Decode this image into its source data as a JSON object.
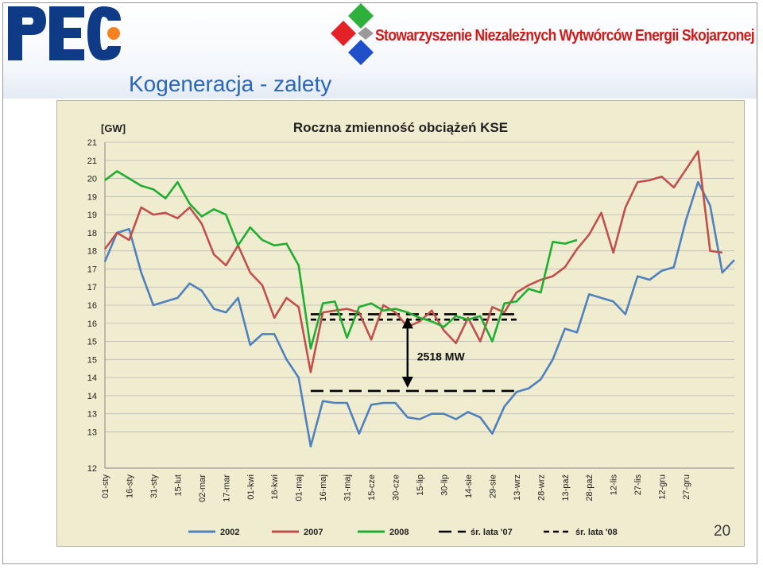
{
  "slide": {
    "title": "Kogeneracja - zalety",
    "page_number": "20",
    "logo_text": "PEC",
    "organization": "Stowarzyszenie Niezależnych Wytwórców Energii Skojarzonej",
    "title_color": "#2a67b8"
  },
  "chart_data": {
    "type": "line",
    "title": "Roczna zmienność obciążeń KSE",
    "unit_label": "[GW]",
    "ylim": [
      12,
      21
    ],
    "y_ticks": [
      12,
      13,
      13.5,
      14,
      14.5,
      15,
      15.5,
      16,
      16.5,
      17,
      17.5,
      18,
      18.5,
      19,
      19.5,
      20,
      20.5,
      21
    ],
    "y_tick_labels": [
      "12",
      "13",
      "13",
      "14",
      "14",
      "15",
      "15",
      "16",
      "16",
      "17",
      "17",
      "18",
      "18",
      "19",
      "19",
      "20",
      "21",
      "21"
    ],
    "x_tick_labels": [
      "01-sty",
      "16-sty",
      "31-sty",
      "15-lut",
      "02-mar",
      "17-mar",
      "01-kwi",
      "16-kwi",
      "01-maj",
      "16-maj",
      "31-maj",
      "15-cze",
      "30-cze",
      "15-lip",
      "30-lip",
      "14-sie",
      "29-sie",
      "13-wrz",
      "28-wrz",
      "13-paź",
      "28-paź",
      "12-lis",
      "27-lis",
      "12-gru",
      "27-gru"
    ],
    "n_points": 53,
    "grid": true,
    "legend_position": "bottom",
    "series": [
      {
        "name": "2002",
        "color": "#4f81bd",
        "values": [
          17.7,
          18.5,
          18.6,
          17.4,
          16.5,
          16.6,
          16.7,
          17.1,
          16.9,
          16.4,
          16.3,
          16.7,
          15.4,
          15.7,
          15.7,
          15.0,
          14.5,
          12.6,
          13.85,
          13.8,
          13.8,
          12.95,
          13.75,
          13.8,
          13.8,
          13.4,
          13.35,
          13.5,
          13.5,
          13.35,
          13.55,
          13.4,
          12.95,
          13.7,
          14.1,
          14.2,
          14.45,
          15.0,
          15.85,
          15.75,
          16.8,
          16.7,
          16.6,
          16.25,
          17.3,
          17.2,
          17.45,
          17.55,
          18.85,
          19.9,
          19.25,
          17.4,
          17.75
        ]
      },
      {
        "name": "2007",
        "color": "#c0504d",
        "values": [
          18.05,
          18.5,
          18.3,
          19.2,
          19.0,
          19.05,
          18.9,
          19.2,
          18.75,
          17.9,
          17.6,
          18.15,
          17.4,
          17.05,
          16.15,
          16.7,
          16.45,
          14.65,
          16.3,
          16.35,
          16.4,
          16.3,
          15.55,
          16.5,
          16.3,
          15.9,
          16.05,
          16.35,
          15.8,
          15.45,
          16.15,
          15.5,
          16.45,
          16.3,
          16.85,
          17.05,
          17.2,
          17.3,
          17.55,
          18.05,
          18.45,
          19.05,
          17.95,
          19.2,
          19.9,
          19.95,
          20.05,
          19.75,
          20.25,
          20.75,
          18.0,
          17.95,
          null
        ]
      },
      {
        "name": "2008",
        "color": "#1fae32",
        "values": [
          19.95,
          20.2,
          20.0,
          19.8,
          19.7,
          19.45,
          19.9,
          19.3,
          18.95,
          19.15,
          19.0,
          18.15,
          18.65,
          18.3,
          18.15,
          18.2,
          17.6,
          15.3,
          16.55,
          16.6,
          15.6,
          16.45,
          16.55,
          16.35,
          16.4,
          16.3,
          16.15,
          16.05,
          15.9,
          16.2,
          16.1,
          16.2,
          15.5,
          16.55,
          16.6,
          16.95,
          16.85,
          18.25,
          18.2,
          18.3,
          null,
          null,
          null,
          null,
          null,
          null,
          null,
          null,
          null,
          null,
          null,
          null,
          null
        ]
      }
    ],
    "reference_lines": [
      {
        "name": "śr. lata '07",
        "style": "long-dash",
        "values": [
          16.25,
          14.13
        ]
      },
      {
        "name": "śr. lata '08",
        "style": "short-dash",
        "values": [
          16.1
        ]
      }
    ],
    "annotation": {
      "text": "2518 MW"
    }
  }
}
